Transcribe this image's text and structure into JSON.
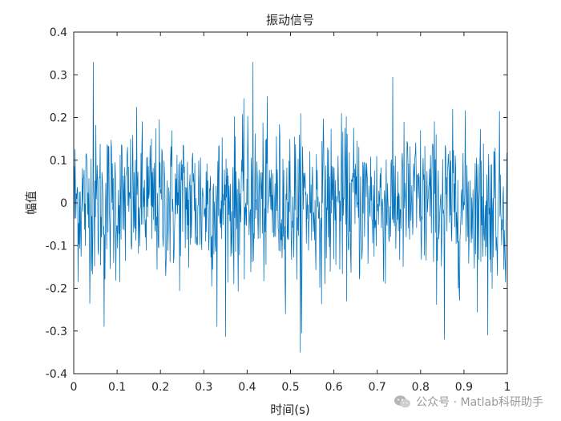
{
  "chart_data": {
    "type": "line",
    "title": "振动信号",
    "xlabel": "时间(s)",
    "ylabel": "幅值",
    "xlim": [
      0,
      1
    ],
    "ylim": [
      -0.4,
      0.4
    ],
    "x_ticks": [
      "0",
      "0.1",
      "0.2",
      "0.3",
      "0.4",
      "0.5",
      "0.6",
      "0.7",
      "0.8",
      "0.9",
      "1"
    ],
    "y_ticks": [
      "0.4",
      "0.3",
      "0.2",
      "0.1",
      "0",
      "-0.1",
      "-0.2",
      "-0.3",
      "-0.4"
    ],
    "grid": false,
    "color": "#0072BD",
    "series": [
      {
        "sample_count": 1000,
        "x_range": [
          0,
          1
        ],
        "approx_std": 0.09,
        "approx_min": -0.35,
        "approx_max": 0.33,
        "notable_peaks": [
          {
            "x": 0.045,
            "y": 0.33
          },
          {
            "x": 0.413,
            "y": 0.33
          },
          {
            "x": 0.523,
            "y": -0.35
          },
          {
            "x": 0.855,
            "y": -0.32
          },
          {
            "x": 0.955,
            "y": -0.31
          },
          {
            "x": 0.07,
            "y": -0.29
          },
          {
            "x": 0.33,
            "y": -0.29
          }
        ]
      }
    ]
  },
  "watermark": {
    "text": "公众号 · Matlab科研助手",
    "icon": "wechat-icon"
  }
}
